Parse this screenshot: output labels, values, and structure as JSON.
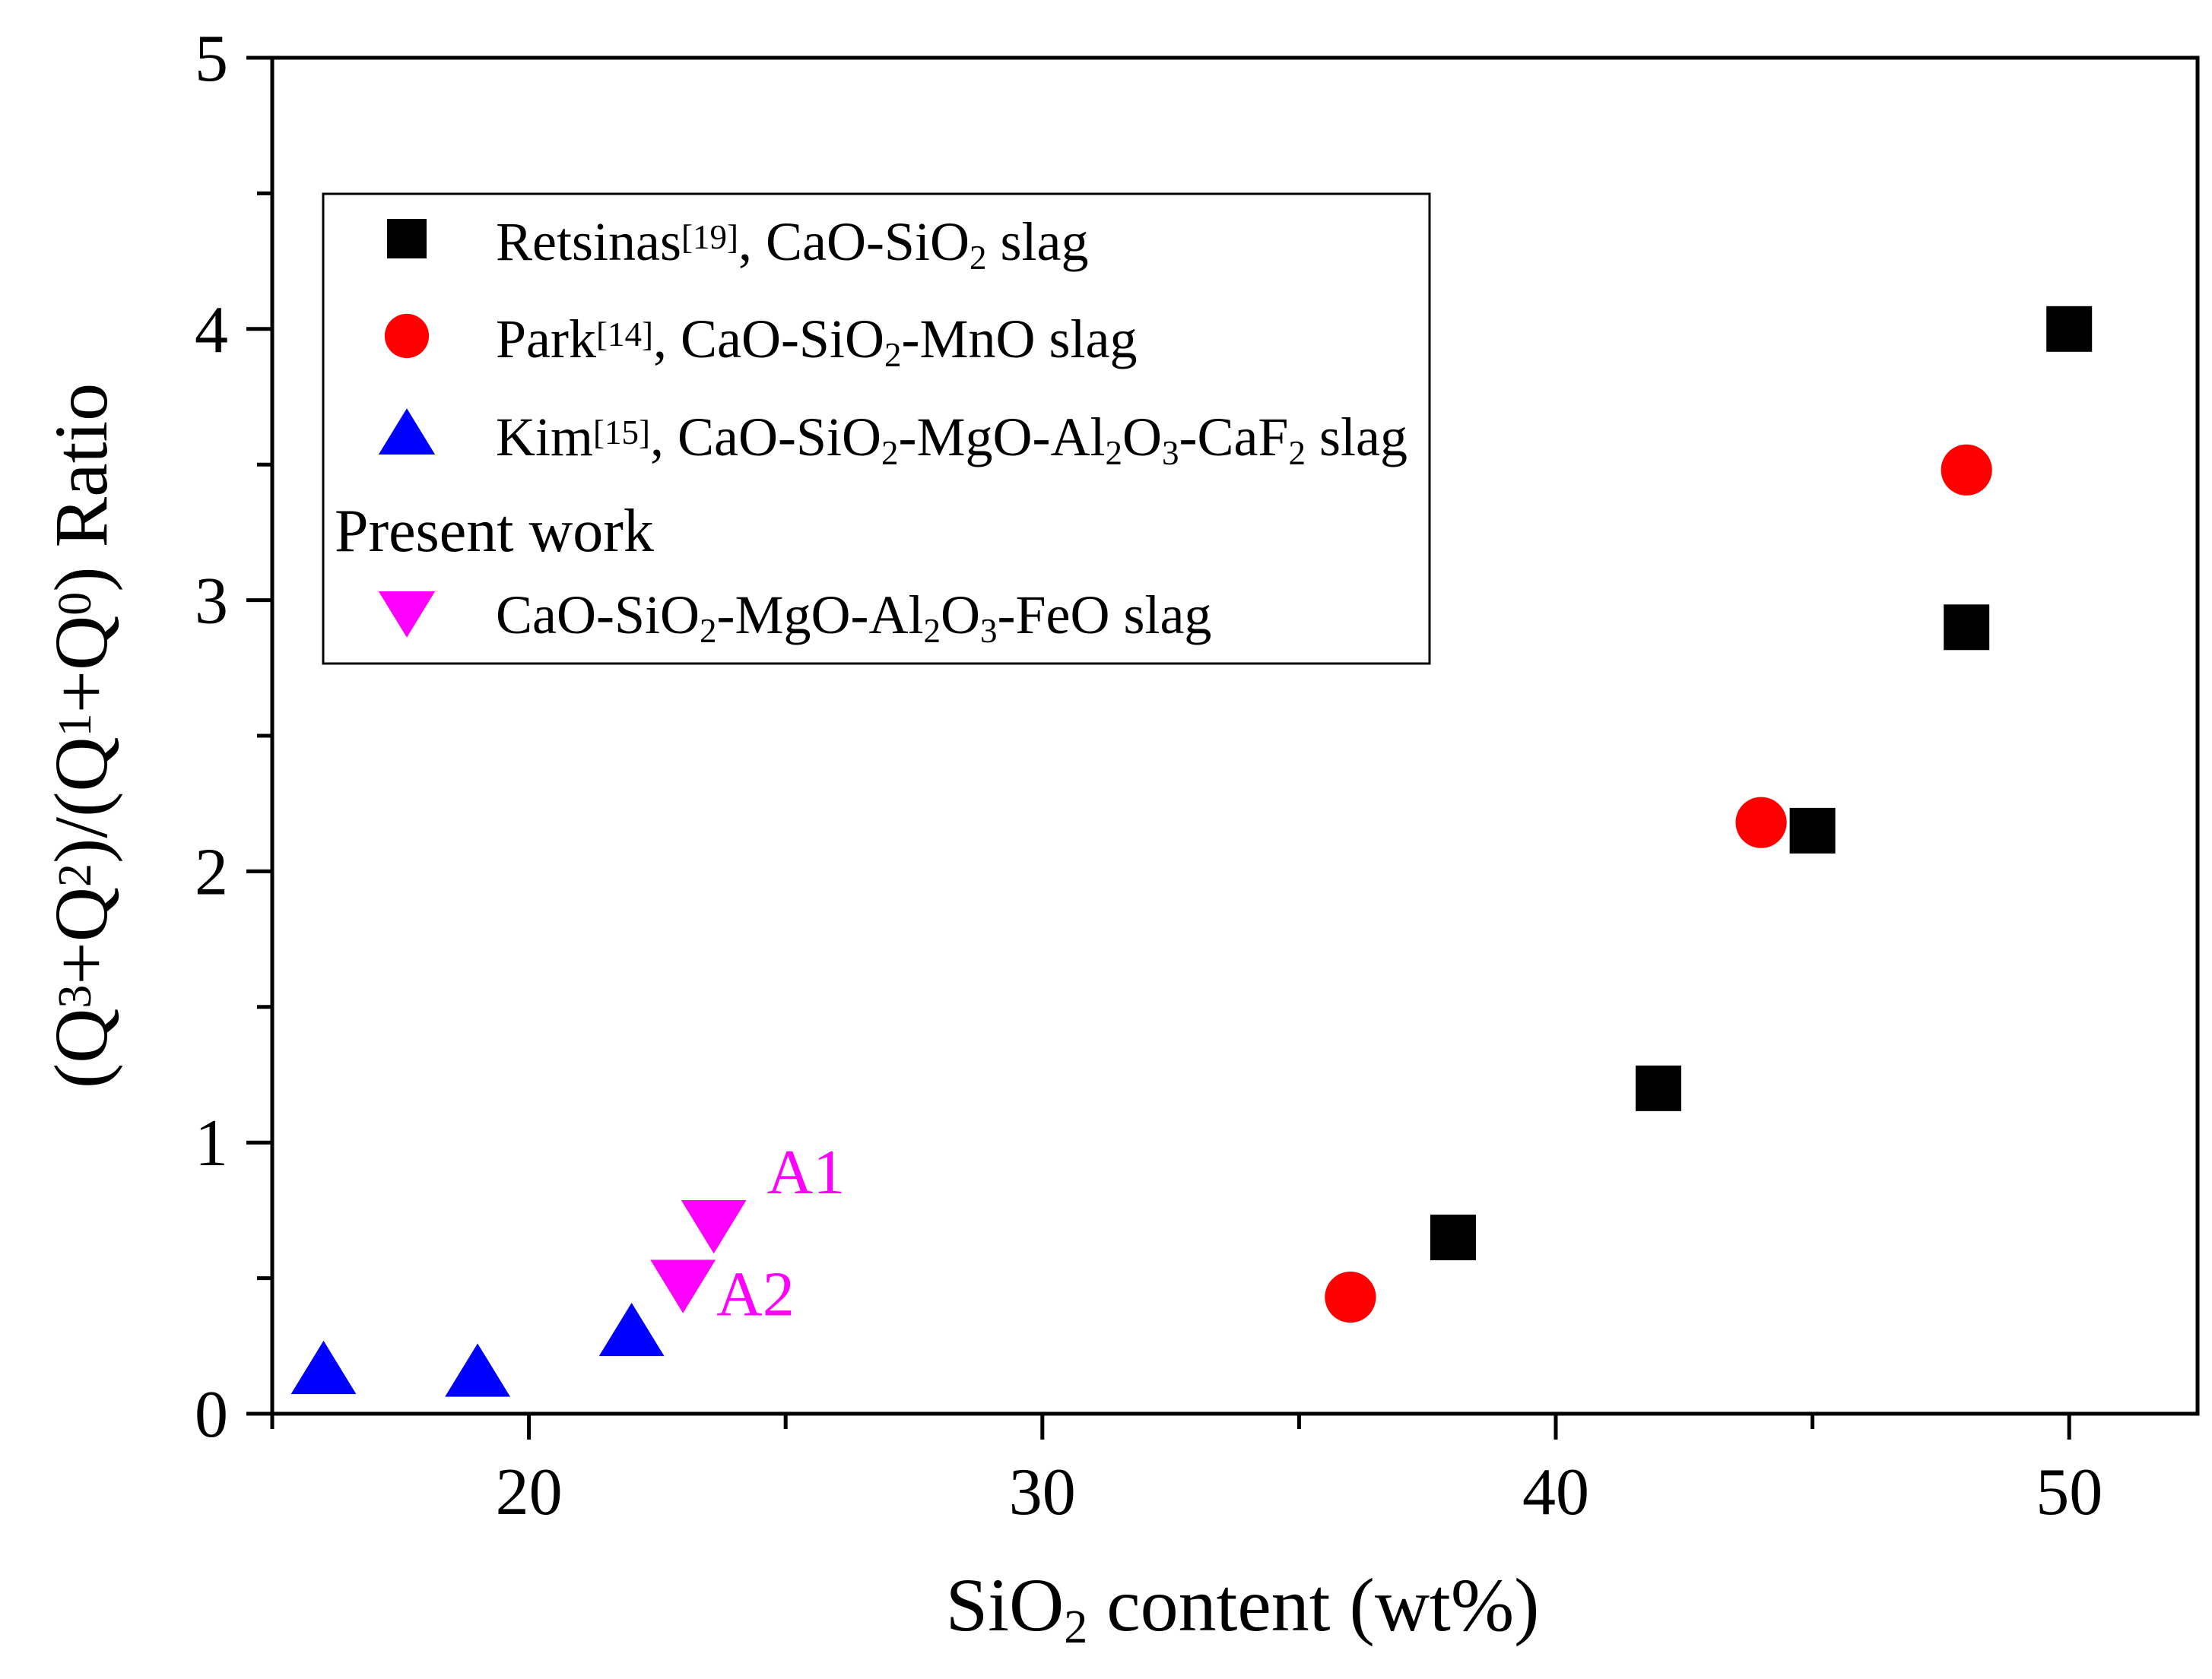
{
  "chart_data": {
    "type": "scatter",
    "title": "",
    "xlabel": {
      "main": "SiO",
      "sub": "2",
      "rest": " content (wt%)"
    },
    "ylabel": {
      "parts": [
        {
          "t": "(Q",
          "s": "normal"
        },
        {
          "t": "3",
          "s": "sup"
        },
        {
          "t": "+Q",
          "s": "normal"
        },
        {
          "t": "2",
          "s": "sup"
        },
        {
          "t": ")/(Q",
          "s": "normal"
        },
        {
          "t": "1",
          "s": "sup"
        },
        {
          "t": "+Q",
          "s": "normal"
        },
        {
          "t": "0",
          "s": "sup"
        },
        {
          "t": ") Ratio",
          "s": "normal"
        }
      ]
    },
    "xlim": [
      15,
      52.5
    ],
    "ylim": [
      0,
      5
    ],
    "x_major_ticks": [
      20,
      30,
      40,
      50
    ],
    "x_minor_ticks": [
      15,
      25,
      35,
      45
    ],
    "y_major_ticks": [
      0,
      1,
      2,
      3,
      4,
      5
    ],
    "y_minor_ticks": [
      0.5,
      1.5,
      2.5,
      3.5,
      4.5
    ],
    "x_tick_labels": [
      "20",
      "30",
      "40",
      "50"
    ],
    "y_tick_labels": [
      "0",
      "1",
      "2",
      "3",
      "4",
      "5"
    ],
    "legend_position": "upper-left",
    "series": [
      {
        "name": "Retsinas[19], CaO-SiO2 slag",
        "marker": "square",
        "color": "#000000",
        "x": [
          38,
          42,
          45,
          48,
          50
        ],
        "y": [
          0.65,
          1.2,
          2.15,
          2.9,
          4.0
        ],
        "legend_parts": [
          {
            "t": "Retsinas",
            "s": "normal"
          },
          {
            "t": "[19]",
            "s": "sup"
          },
          {
            "t": ", CaO-SiO",
            "s": "normal"
          },
          {
            "t": "2",
            "s": "sub"
          },
          {
            "t": " slag",
            "s": "normal"
          }
        ]
      },
      {
        "name": "Park[14], CaO-SiO2-MnO slag",
        "marker": "circle",
        "color": "#ff0000",
        "x": [
          36,
          44,
          48
        ],
        "y": [
          0.43,
          2.18,
          3.48
        ],
        "legend_parts": [
          {
            "t": "Park",
            "s": "normal"
          },
          {
            "t": "[14]",
            "s": "sup"
          },
          {
            "t": ", CaO-SiO",
            "s": "normal"
          },
          {
            "t": "2",
            "s": "sub"
          },
          {
            "t": "-MnO slag",
            "s": "normal"
          }
        ]
      },
      {
        "name": "Kim[15], CaO-SiO2-MgO-Al2O3-CaF2 slag",
        "marker": "triangle-up",
        "color": "#0000ff",
        "x": [
          16,
          19,
          22
        ],
        "y": [
          0.16,
          0.15,
          0.3
        ],
        "legend_parts": [
          {
            "t": "Kim",
            "s": "normal"
          },
          {
            "t": "[15]",
            "s": "sup"
          },
          {
            "t": ", CaO-SiO",
            "s": "normal"
          },
          {
            "t": "2",
            "s": "sub"
          },
          {
            "t": "-MgO-Al",
            "s": "normal"
          },
          {
            "t": "2",
            "s": "sub"
          },
          {
            "t": "O",
            "s": "normal"
          },
          {
            "t": "3",
            "s": "sub"
          },
          {
            "t": "-CaF",
            "s": "normal"
          },
          {
            "t": "2",
            "s": "sub"
          },
          {
            "t": " slag",
            "s": "normal"
          }
        ]
      },
      {
        "name": "CaO-SiO2-MgO-Al2O3-FeO slag",
        "marker": "triangle-down",
        "color": "#ff00ff",
        "x": [
          23.6,
          23.0
        ],
        "y": [
          0.7,
          0.48
        ],
        "point_labels": [
          "A1",
          "A2"
        ],
        "legend_group_title": "Present work",
        "legend_parts": [
          {
            "t": "CaO-SiO",
            "s": "normal"
          },
          {
            "t": "2",
            "s": "sub"
          },
          {
            "t": "-MgO-Al",
            "s": "normal"
          },
          {
            "t": "2",
            "s": "sub"
          },
          {
            "t": "O",
            "s": "normal"
          },
          {
            "t": "3",
            "s": "sub"
          },
          {
            "t": "-FeO slag",
            "s": "normal"
          }
        ]
      }
    ]
  }
}
